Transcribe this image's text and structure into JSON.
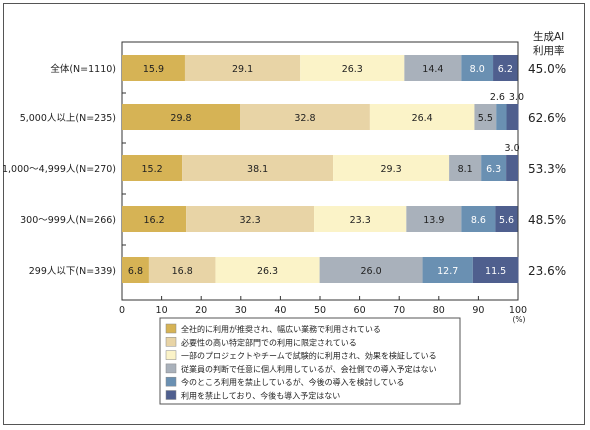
{
  "chart_data": {
    "type": "bar",
    "orientation": "horizontal",
    "stacked": true,
    "categories": [
      "全体(N=1110)",
      "5,000人以上(N=235)",
      "1,000～4,999人(N=270)",
      "300～999人(N=266)",
      "299人以下(N=339)"
    ],
    "series": [
      {
        "name": "全社的に利用が推奨され、幅広い業務で利用されている",
        "color": "#d6b355",
        "values": [
          15.9,
          29.8,
          15.2,
          16.2,
          6.8
        ]
      },
      {
        "name": "必要性の高い特定部門での利用に限定されている",
        "color": "#e8d4a6",
        "values": [
          29.1,
          32.8,
          38.1,
          32.3,
          16.8
        ]
      },
      {
        "name": "一部のプロジェクトやチームで試験的に利用され、効果を検証している",
        "color": "#fbf3c8",
        "values": [
          26.3,
          26.4,
          29.3,
          23.3,
          26.3
        ]
      },
      {
        "name": "従業員の判断で任意に個人利用しているが、会社側での導入予定はない",
        "color": "#a9b1bb",
        "values": [
          14.4,
          5.5,
          8.1,
          13.9,
          26.0
        ]
      },
      {
        "name": "今のところ利用を禁止しているが、今後の導入を検討している",
        "color": "#6a90b2",
        "values": [
          8.0,
          2.6,
          6.3,
          8.6,
          12.7
        ]
      },
      {
        "name": "利用を禁止しており、今後も導入予定はない",
        "color": "#4f5f8e",
        "values": [
          6.2,
          3.0,
          3.0,
          5.6,
          11.5
        ]
      }
    ],
    "labels_outside": [
      {
        "row": 1,
        "series": 4,
        "text": "2.6"
      },
      {
        "row": 1,
        "series": 5,
        "text": "3.0"
      },
      {
        "row": 2,
        "series": 5,
        "text": "3.0"
      }
    ],
    "rate_header": [
      "生成AI",
      "利用率"
    ],
    "rates": [
      "45.0%",
      "62.6%",
      "53.3%",
      "48.5%",
      "23.6%"
    ],
    "xlim": [
      0,
      100
    ],
    "xticks": [
      0,
      10,
      20,
      30,
      40,
      50,
      60,
      70,
      80,
      90,
      100
    ],
    "x_unit": "(%)",
    "legend_position": "bottom"
  }
}
